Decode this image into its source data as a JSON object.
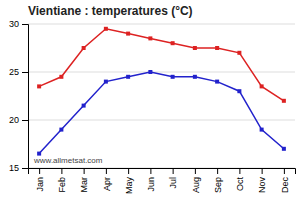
{
  "chart_data": {
    "type": "line",
    "title": "Vientiane : temperatures (°C)",
    "categories": [
      "Jan",
      "Feb",
      "Mar",
      "Apr",
      "May",
      "Jun",
      "Jul",
      "Aug",
      "Sep",
      "Oct",
      "Nov",
      "Dec"
    ],
    "series": [
      {
        "color": "#dd2222",
        "marker": "square",
        "values": [
          23.5,
          24.5,
          27.5,
          29.5,
          29.0,
          28.5,
          28.0,
          27.5,
          27.5,
          27.0,
          23.5,
          22.0
        ]
      },
      {
        "color": "#2222cc",
        "marker": "square",
        "values": [
          16.5,
          19.0,
          21.5,
          24.0,
          24.5,
          25.0,
          24.5,
          24.5,
          24.0,
          23.0,
          19.0,
          17.0
        ]
      }
    ],
    "ylim": [
      15,
      30
    ],
    "yticks": [
      15,
      20,
      25,
      30
    ],
    "grid": true,
    "annotation": "www.allmetsat.com"
  }
}
